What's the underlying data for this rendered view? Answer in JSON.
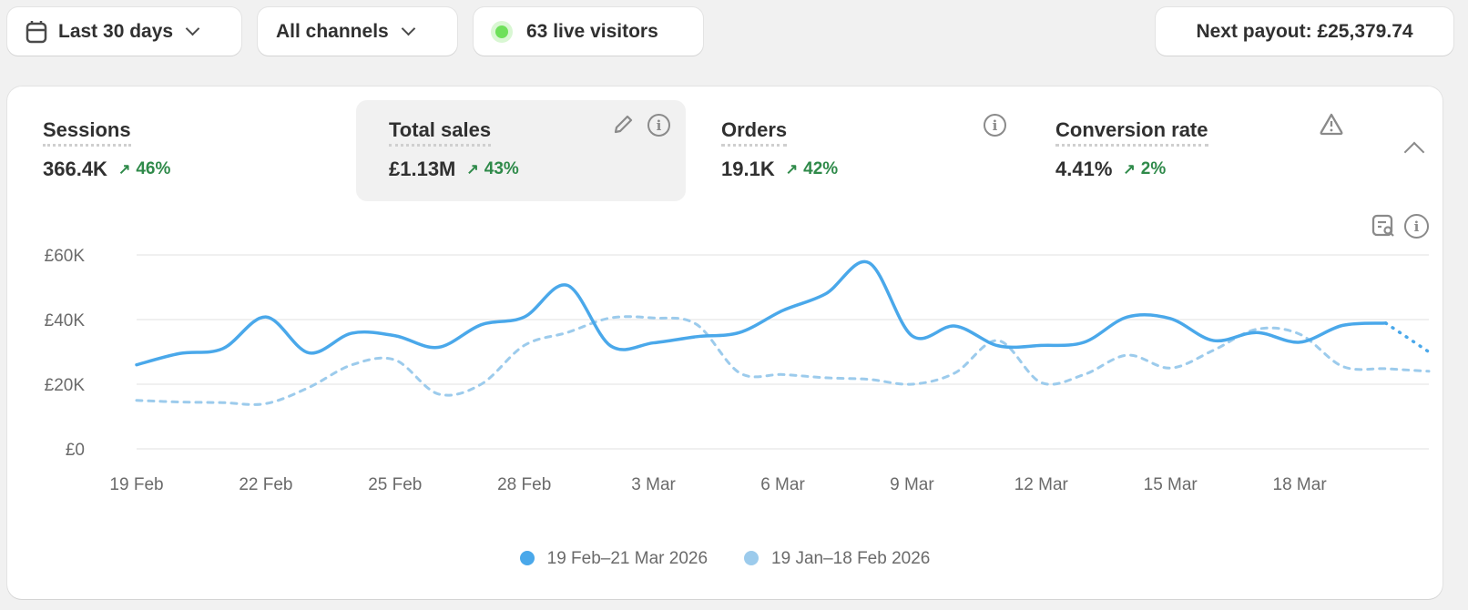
{
  "toolbar": {
    "date_range": "Last 30 days",
    "channels": "All channels",
    "live_visitors": "63 live visitors",
    "next_payout": "Next payout: £25,379.74",
    "live_color": "#6ee05a"
  },
  "metrics": [
    {
      "label": "Sessions",
      "value": "366.4K",
      "delta": "46%"
    },
    {
      "label": "Total sales",
      "value": "£1.13M",
      "delta": "43%",
      "selected": true
    },
    {
      "label": "Orders",
      "value": "19.1K",
      "delta": "42%"
    },
    {
      "label": "Conversion rate",
      "value": "4.41%",
      "delta": "2%"
    }
  ],
  "icons": {
    "edit": "pencil-icon",
    "info": "info-icon",
    "warning": "warning-icon",
    "collapse": "chevron-up-icon",
    "report": "report-search-icon",
    "calendar": "calendar-icon"
  },
  "chart_data": {
    "type": "line",
    "ylim": [
      0,
      60000
    ],
    "yticks": [
      "£0",
      "£20K",
      "£40K",
      "£60K"
    ],
    "ytick_values": [
      0,
      20000,
      40000,
      60000
    ],
    "xticks": [
      "19 Feb",
      "22 Feb",
      "25 Feb",
      "28 Feb",
      "3 Mar",
      "6 Mar",
      "9 Mar",
      "12 Mar",
      "15 Mar",
      "18 Mar"
    ],
    "grid": true,
    "legend_placement": "bottom",
    "series": [
      {
        "name": "19 Feb–21 Mar 2026",
        "color": "#4aa8ea",
        "style": "solid",
        "values": [
          26000,
          29500,
          31000,
          40800,
          29700,
          35800,
          35000,
          31400,
          38400,
          40800,
          50600,
          31900,
          32800,
          34700,
          36000,
          42800,
          48000,
          57600,
          35000,
          38000,
          31900,
          32000,
          33000,
          40800,
          40300,
          33500,
          36000,
          33000,
          38200,
          38900,
          30000
        ]
      },
      {
        "name": "19 Jan–18 Feb 2026",
        "color": "#9ccbec",
        "style": "dashed",
        "values": [
          15000,
          14500,
          14300,
          14000,
          19000,
          26000,
          27500,
          17000,
          20000,
          32000,
          36000,
          40500,
          40500,
          38500,
          23500,
          23000,
          22000,
          21500,
          20000,
          23500,
          33500,
          20500,
          23000,
          29000,
          25000,
          30500,
          37000,
          35500,
          25500,
          24800,
          24000
        ]
      }
    ]
  }
}
